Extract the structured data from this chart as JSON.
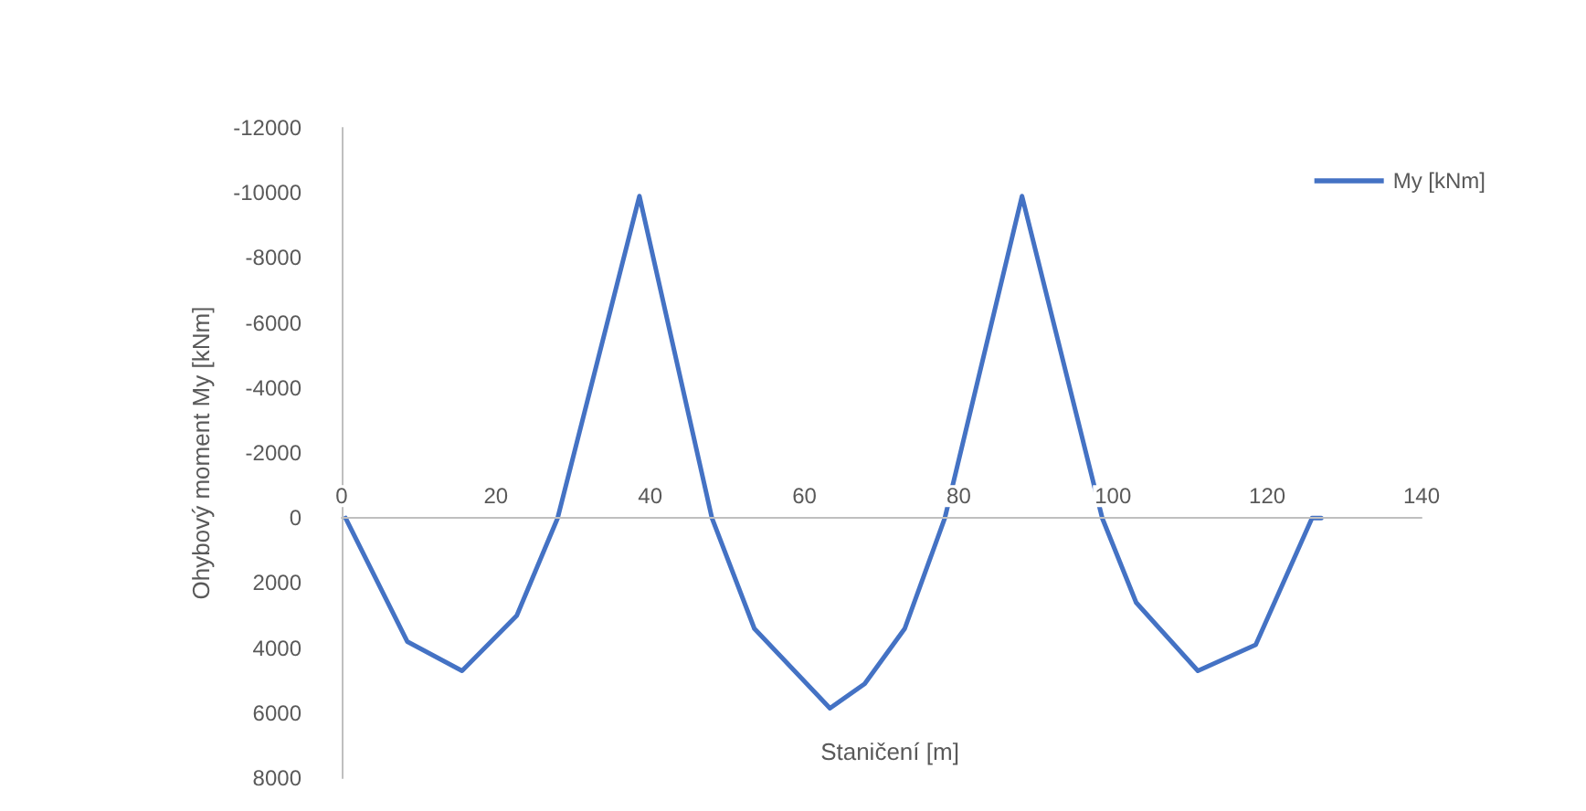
{
  "chart_data": {
    "type": "line",
    "xlabel": "Staničení [m]",
    "ylabel": "Ohybový moment My [kNm]",
    "x": [
      0.5,
      8.5,
      15.6,
      22.7,
      28,
      38.6,
      48,
      53.5,
      63.3,
      67.8,
      73,
      78.2,
      88.2,
      98.6,
      103,
      111,
      118.5,
      125.8,
      127
    ],
    "series": [
      {
        "name": "My [kNm]",
        "color": "#4472c4",
        "values": [
          0,
          3800,
          4700,
          3000,
          0,
          -9900,
          0,
          3400,
          5850,
          5100,
          3400,
          0,
          -9900,
          0,
          2600,
          4700,
          3900,
          0,
          0
        ]
      }
    ],
    "xlim": [
      0,
      140
    ],
    "xticks": [
      0,
      20,
      40,
      60,
      80,
      100,
      120,
      140
    ],
    "ylim": [
      8000,
      -12000
    ],
    "yticks": [
      -12000,
      -10000,
      -8000,
      -6000,
      -4000,
      -2000,
      0,
      2000,
      4000,
      6000,
      8000
    ],
    "grid": false,
    "legend": "top right",
    "marker": "none",
    "line_style": "solid"
  }
}
